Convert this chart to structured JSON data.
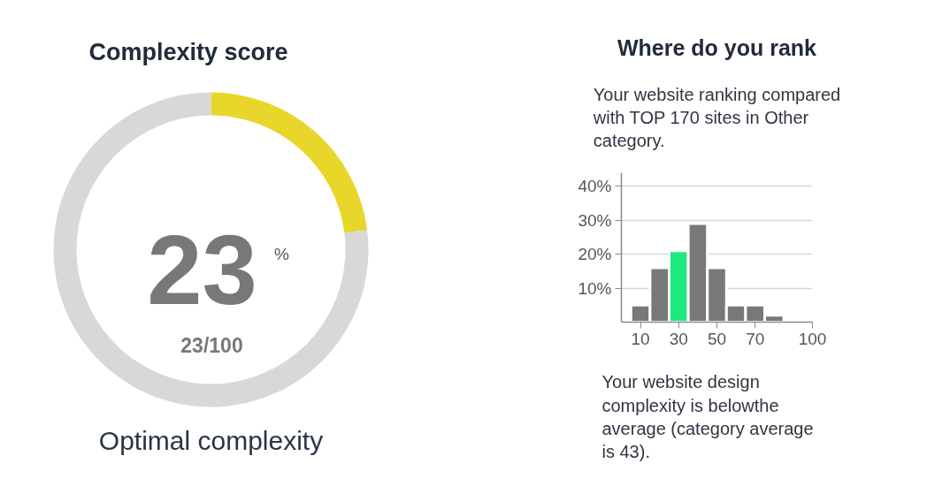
{
  "chart_data": [
    {
      "type": "donut",
      "title": "Complexity score",
      "categories": [
        null,
        null
      ],
      "values": [
        23,
        77
      ],
      "colors": [
        "#e8d62a",
        "#d8d8d8"
      ],
      "annotations": [
        "23",
        "%",
        "23/100",
        "Optimal complexity"
      ]
    },
    {
      "type": "histogram",
      "title": "Where do you rank",
      "subtitle": "Your website ranking compared with TOP 170 sites in Other category.",
      "bins": [
        5,
        15,
        25,
        35,
        45,
        55,
        65,
        75,
        85
      ],
      "values": [
        5,
        16,
        21,
        29,
        16,
        5,
        5,
        2
      ],
      "colors": [
        "#787878",
        "#787878",
        "#1ee87f",
        "#787878",
        "#787878",
        "#787878",
        "#787878",
        "#787878"
      ],
      "xlim": [
        0,
        100
      ],
      "xticks": [
        10,
        30,
        50,
        70,
        100
      ],
      "ylim": [
        0,
        44
      ],
      "yticks": [
        {
          "value": 10,
          "label": "10%"
        },
        {
          "value": 20,
          "label": "20%"
        },
        {
          "value": 30,
          "label": "30%"
        },
        {
          "value": 40,
          "label": "40%"
        }
      ],
      "grid": "y",
      "annotations": [
        "Your website design complexity is belowthe average (category average is 43)."
      ]
    }
  ]
}
